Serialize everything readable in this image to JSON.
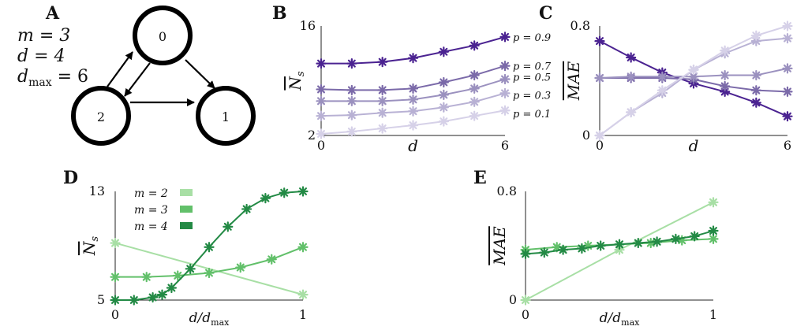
{
  "panels": {
    "A": {
      "label": "A",
      "params": [
        "m = 3",
        "d = 4",
        "d_max = 6"
      ],
      "nodes": [
        "0",
        "1",
        "2"
      ],
      "edges": [
        [
          "0",
          "1"
        ],
        [
          "2",
          "0"
        ],
        [
          "0",
          "2"
        ],
        [
          "2",
          "1"
        ]
      ]
    }
  },
  "chart_data": [
    {
      "panel": "B",
      "type": "line",
      "ylabel": "N̄s",
      "xlabel": "d",
      "xlim": [
        0,
        6
      ],
      "ylim": [
        2,
        16
      ],
      "yticks": [
        "2",
        "16"
      ],
      "xticks": [
        "0",
        "6"
      ],
      "x": [
        0,
        1,
        2,
        3,
        4,
        5,
        6
      ],
      "series": [
        {
          "name": "p = 0.9",
          "color": "#4b2391",
          "values": [
            11.2,
            11.2,
            11.4,
            11.9,
            12.7,
            13.5,
            14.6
          ]
        },
        {
          "name": "p = 0.7",
          "color": "#7b6aa9",
          "values": [
            7.9,
            7.8,
            7.8,
            8.0,
            8.8,
            9.7,
            10.9
          ]
        },
        {
          "name": "p = 0.5",
          "color": "#9b91bf",
          "values": [
            6.4,
            6.4,
            6.4,
            6.6,
            7.2,
            8.0,
            9.2
          ]
        },
        {
          "name": "p = 0.3",
          "color": "#b8b1d4",
          "values": [
            4.5,
            4.6,
            4.9,
            5.1,
            5.6,
            6.3,
            7.4
          ]
        },
        {
          "name": "p = 0.1",
          "color": "#d6d1e8",
          "values": [
            2.2,
            2.5,
            2.9,
            3.3,
            3.8,
            4.5,
            5.2
          ]
        }
      ]
    },
    {
      "panel": "C",
      "type": "line",
      "ylabel": "MAE",
      "xlabel": "d",
      "xlim": [
        0,
        6
      ],
      "ylim": [
        0,
        0.8
      ],
      "yticks": [
        "0",
        "0.8"
      ],
      "xticks": [
        "0",
        "6"
      ],
      "x": [
        0,
        1,
        2,
        3,
        4,
        5,
        6
      ],
      "series": [
        {
          "name": "p = 0.9",
          "color": "#4b2391",
          "values": [
            0.69,
            0.57,
            0.46,
            0.38,
            0.32,
            0.24,
            0.14
          ]
        },
        {
          "name": "p = 0.7",
          "color": "#7b6aa9",
          "values": [
            0.42,
            0.42,
            0.42,
            0.41,
            0.36,
            0.33,
            0.32
          ]
        },
        {
          "name": "p = 0.5",
          "color": "#9b91bf",
          "values": [
            0.42,
            0.43,
            0.43,
            0.43,
            0.44,
            0.44,
            0.49
          ]
        },
        {
          "name": "p = 0.3",
          "color": "#b8b1d4",
          "values": [
            0.0,
            0.17,
            0.31,
            0.48,
            0.6,
            0.69,
            0.71
          ]
        },
        {
          "name": "p = 0.1",
          "color": "#d6d1e8",
          "values": [
            0.0,
            0.17,
            0.33,
            0.48,
            0.62,
            0.73,
            0.8
          ]
        }
      ]
    },
    {
      "panel": "D",
      "type": "line",
      "ylabel": "N̄s",
      "xlabel": "d/d_max",
      "xlim": [
        0,
        1
      ],
      "ylim": [
        5,
        13
      ],
      "yticks": [
        "5",
        "13"
      ],
      "xticks": [
        "0",
        "1"
      ],
      "legend": "top-left",
      "series": [
        {
          "name": "m = 2",
          "color": "#a8dfa5",
          "x": [
            0,
            1
          ],
          "values": [
            9.2,
            5.4
          ]
        },
        {
          "name": "m = 3",
          "color": "#62c06a",
          "x": [
            0,
            0.167,
            0.333,
            0.5,
            0.667,
            0.833,
            1.0
          ],
          "values": [
            6.7,
            6.7,
            6.8,
            7.0,
            7.4,
            8.0,
            8.9
          ]
        },
        {
          "name": "m = 4",
          "color": "#238a45",
          "x": [
            0,
            0.1,
            0.2,
            0.25,
            0.3,
            0.4,
            0.5,
            0.6,
            0.7,
            0.8,
            0.9,
            1.0
          ],
          "values": [
            5.0,
            5.0,
            5.2,
            5.4,
            5.9,
            7.3,
            8.9,
            10.4,
            11.7,
            12.5,
            12.9,
            13.0
          ]
        }
      ]
    },
    {
      "panel": "E",
      "type": "line",
      "ylabel": "MAE",
      "xlabel": "d/d_max",
      "xlim": [
        0,
        1
      ],
      "ylim": [
        0,
        0.8
      ],
      "yticks": [
        "0",
        "0.8"
      ],
      "xticks": [
        "0",
        "1"
      ],
      "series": [
        {
          "name": "m = 2",
          "color": "#a8dfa5",
          "x": [
            0,
            0.5,
            1
          ],
          "values": [
            0.0,
            0.37,
            0.72
          ]
        },
        {
          "name": "m = 3",
          "color": "#62c06a",
          "x": [
            0,
            0.167,
            0.333,
            0.5,
            0.667,
            0.833,
            1.0
          ],
          "values": [
            0.37,
            0.39,
            0.4,
            0.41,
            0.42,
            0.44,
            0.45
          ]
        },
        {
          "name": "m = 4",
          "color": "#238a45",
          "x": [
            0,
            0.1,
            0.2,
            0.3,
            0.4,
            0.5,
            0.6,
            0.7,
            0.8,
            0.9,
            1.0
          ],
          "values": [
            0.34,
            0.35,
            0.37,
            0.38,
            0.4,
            0.41,
            0.42,
            0.43,
            0.45,
            0.47,
            0.51
          ]
        }
      ]
    }
  ]
}
